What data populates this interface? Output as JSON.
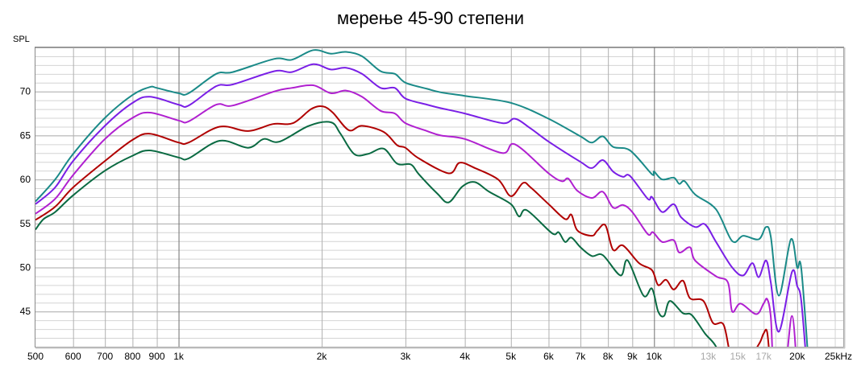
{
  "chart_data": {
    "type": "line",
    "title": "мерење 45-90 степени",
    "ylabel": "SPL",
    "xlabel": "",
    "xscale": "log",
    "xlim": [
      500,
      25000
    ],
    "ylim": [
      41,
      75
    ],
    "grid": true,
    "legend": "none",
    "yticks": [
      {
        "value": 45,
        "label": "45"
      },
      {
        "value": 50,
        "label": "50"
      },
      {
        "value": 55,
        "label": "55"
      },
      {
        "value": 60,
        "label": "60"
      },
      {
        "value": 65,
        "label": "65"
      },
      {
        "value": 70,
        "label": "70"
      }
    ],
    "xticks": [
      {
        "value": 500,
        "label": "500"
      },
      {
        "value": 600,
        "label": "600"
      },
      {
        "value": 700,
        "label": "700"
      },
      {
        "value": 800,
        "label": "800"
      },
      {
        "value": 900,
        "label": "900"
      },
      {
        "value": 1000,
        "label": "1k"
      },
      {
        "value": 2000,
        "label": "2k"
      },
      {
        "value": 3000,
        "label": "3k"
      },
      {
        "value": 4000,
        "label": "4k"
      },
      {
        "value": 5000,
        "label": "5k"
      },
      {
        "value": 6000,
        "label": "6k"
      },
      {
        "value": 7000,
        "label": "7k"
      },
      {
        "value": 8000,
        "label": "8k"
      },
      {
        "value": 9000,
        "label": "9k"
      },
      {
        "value": 10000,
        "label": "10k"
      },
      {
        "value": 13000,
        "label": "13k",
        "minor": true
      },
      {
        "value": 15000,
        "label": "15k",
        "minor": true
      },
      {
        "value": 17000,
        "label": "17k",
        "minor": true
      },
      {
        "value": 20000,
        "label": "20k"
      },
      {
        "value": 25000,
        "label": "25kHz"
      }
    ],
    "series": [
      {
        "color": "#1a8a88",
        "points": [
          [
            500,
            57.5
          ],
          [
            550,
            60.0
          ],
          [
            600,
            62.9
          ],
          [
            700,
            67.0
          ],
          [
            800,
            69.6
          ],
          [
            870,
            70.5
          ],
          [
            900,
            70.4
          ],
          [
            1000,
            69.8
          ],
          [
            1050,
            69.8
          ],
          [
            1200,
            72.0
          ],
          [
            1300,
            72.2
          ],
          [
            1590,
            73.7
          ],
          [
            1730,
            73.6
          ],
          [
            1920,
            74.7
          ],
          [
            2090,
            74.3
          ],
          [
            2250,
            74.5
          ],
          [
            2430,
            74.0
          ],
          [
            2660,
            72.3
          ],
          [
            2850,
            72.0
          ],
          [
            3000,
            71.0
          ],
          [
            3330,
            70.3
          ],
          [
            3560,
            69.9
          ],
          [
            4000,
            69.5
          ],
          [
            5000,
            68.7
          ],
          [
            6000,
            66.9
          ],
          [
            7000,
            64.9
          ],
          [
            7400,
            64.2
          ],
          [
            7800,
            64.9
          ],
          [
            8200,
            63.7
          ],
          [
            8900,
            63.3
          ],
          [
            9900,
            60.6
          ],
          [
            10000,
            60.9
          ],
          [
            10400,
            60.0
          ],
          [
            11000,
            60.2
          ],
          [
            11300,
            59.5
          ],
          [
            11600,
            59.8
          ],
          [
            12200,
            58.3
          ],
          [
            13500,
            56.6
          ],
          [
            14600,
            53.0
          ],
          [
            15400,
            53.6
          ],
          [
            16600,
            53.2
          ],
          [
            17200,
            54.6
          ],
          [
            17600,
            53.5
          ],
          [
            18300,
            46.8
          ],
          [
            19400,
            53.2
          ],
          [
            20000,
            50.0
          ],
          [
            20400,
            49.9
          ],
          [
            21200,
            38
          ]
        ]
      },
      {
        "color": "#7a1fe6",
        "points": [
          [
            500,
            57.2
          ],
          [
            550,
            59.1
          ],
          [
            600,
            62.1
          ],
          [
            700,
            66.1
          ],
          [
            800,
            68.7
          ],
          [
            870,
            69.4
          ],
          [
            1000,
            68.5
          ],
          [
            1050,
            68.4
          ],
          [
            1200,
            70.6
          ],
          [
            1300,
            70.8
          ],
          [
            1590,
            72.3
          ],
          [
            1730,
            72.2
          ],
          [
            1920,
            73.1
          ],
          [
            2090,
            72.5
          ],
          [
            2250,
            72.7
          ],
          [
            2430,
            72.0
          ],
          [
            2660,
            70.4
          ],
          [
            2850,
            70.4
          ],
          [
            3000,
            69.2
          ],
          [
            3330,
            68.5
          ],
          [
            3560,
            68.1
          ],
          [
            4000,
            67.5
          ],
          [
            4800,
            66.4
          ],
          [
            5100,
            66.9
          ],
          [
            5500,
            65.8
          ],
          [
            6000,
            64.3
          ],
          [
            7000,
            62.0
          ],
          [
            7400,
            61.3
          ],
          [
            7800,
            62.2
          ],
          [
            8200,
            60.9
          ],
          [
            8600,
            60.3
          ],
          [
            8900,
            60.4
          ],
          [
            9700,
            57.8
          ],
          [
            9900,
            58.0
          ],
          [
            10400,
            56.3
          ],
          [
            11000,
            57.2
          ],
          [
            11400,
            55.7
          ],
          [
            12200,
            54.6
          ],
          [
            12800,
            54.9
          ],
          [
            13500,
            52.9
          ],
          [
            14600,
            50.0
          ],
          [
            15400,
            49.1
          ],
          [
            16100,
            50.5
          ],
          [
            16600,
            48.9
          ],
          [
            17200,
            50.8
          ],
          [
            17600,
            48.3
          ],
          [
            18300,
            42.7
          ],
          [
            19500,
            49.5
          ],
          [
            20000,
            47.9
          ],
          [
            20400,
            46.2
          ],
          [
            21000,
            38
          ]
        ]
      },
      {
        "color": "#b020d0",
        "points": [
          [
            500,
            56.1
          ],
          [
            550,
            57.8
          ],
          [
            600,
            60.5
          ],
          [
            700,
            64.6
          ],
          [
            800,
            67.0
          ],
          [
            870,
            67.6
          ],
          [
            1000,
            66.7
          ],
          [
            1050,
            66.6
          ],
          [
            1200,
            68.5
          ],
          [
            1300,
            68.4
          ],
          [
            1590,
            70.0
          ],
          [
            1730,
            70.4
          ],
          [
            1920,
            70.7
          ],
          [
            2090,
            69.8
          ],
          [
            2250,
            70.1
          ],
          [
            2430,
            69.4
          ],
          [
            2660,
            67.8
          ],
          [
            2850,
            67.5
          ],
          [
            3000,
            66.4
          ],
          [
            3330,
            65.5
          ],
          [
            3560,
            65.0
          ],
          [
            4000,
            64.6
          ],
          [
            4800,
            63.0
          ],
          [
            5100,
            64.0
          ],
          [
            6000,
            60.7
          ],
          [
            6400,
            59.8
          ],
          [
            6600,
            60.1
          ],
          [
            6900,
            58.7
          ],
          [
            7400,
            57.9
          ],
          [
            7800,
            58.6
          ],
          [
            8200,
            56.8
          ],
          [
            8600,
            57.1
          ],
          [
            9000,
            56.3
          ],
          [
            9700,
            53.8
          ],
          [
            9950,
            54.0
          ],
          [
            10400,
            52.9
          ],
          [
            11000,
            53.1
          ],
          [
            11300,
            51.7
          ],
          [
            11900,
            52.3
          ],
          [
            12200,
            50.8
          ],
          [
            13500,
            49.0
          ],
          [
            14300,
            48.3
          ],
          [
            14600,
            45.0
          ],
          [
            15200,
            45.9
          ],
          [
            16400,
            44.7
          ],
          [
            17000,
            45.9
          ],
          [
            17300,
            46.4
          ],
          [
            17600,
            44.4
          ],
          [
            17900,
            38
          ],
          [
            18800,
            38
          ],
          [
            19500,
            44.5
          ],
          [
            20000,
            38
          ]
        ]
      },
      {
        "color": "#b00000",
        "points": [
          [
            500,
            55.4
          ],
          [
            550,
            56.9
          ],
          [
            600,
            59.1
          ],
          [
            700,
            62.1
          ],
          [
            800,
            64.5
          ],
          [
            870,
            65.2
          ],
          [
            1000,
            64.2
          ],
          [
            1050,
            64.2
          ],
          [
            1220,
            66.0
          ],
          [
            1400,
            65.5
          ],
          [
            1580,
            66.3
          ],
          [
            1740,
            66.4
          ],
          [
            1900,
            68.0
          ],
          [
            2010,
            68.3
          ],
          [
            2110,
            67.6
          ],
          [
            2280,
            65.6
          ],
          [
            2430,
            66.1
          ],
          [
            2700,
            65.4
          ],
          [
            2880,
            63.9
          ],
          [
            3000,
            63.6
          ],
          [
            3200,
            62.4
          ],
          [
            3700,
            60.7
          ],
          [
            3900,
            61.9
          ],
          [
            4200,
            61.3
          ],
          [
            4700,
            60.0
          ],
          [
            5000,
            58.1
          ],
          [
            5300,
            59.6
          ],
          [
            5500,
            59.1
          ],
          [
            6000,
            57.2
          ],
          [
            6500,
            55.5
          ],
          [
            6700,
            56.0
          ],
          [
            6900,
            54.2
          ],
          [
            7400,
            53.6
          ],
          [
            7600,
            54.2
          ],
          [
            7900,
            54.8
          ],
          [
            8200,
            52.0
          ],
          [
            8600,
            52.5
          ],
          [
            9300,
            50.5
          ],
          [
            9900,
            49.7
          ],
          [
            10200,
            48.0
          ],
          [
            10600,
            48.6
          ],
          [
            11000,
            47.5
          ],
          [
            11500,
            48.5
          ],
          [
            11900,
            46.5
          ],
          [
            12700,
            46.2
          ],
          [
            13300,
            43.7
          ],
          [
            14000,
            43.5
          ],
          [
            14500,
            40
          ],
          [
            15200,
            39
          ],
          [
            16000,
            40
          ],
          [
            16700,
            41.5
          ],
          [
            17000,
            42.5
          ],
          [
            17300,
            42.6
          ],
          [
            17600,
            38
          ]
        ]
      },
      {
        "color": "#0a6a42",
        "points": [
          [
            500,
            54.3
          ],
          [
            520,
            55.5
          ],
          [
            550,
            56.3
          ],
          [
            600,
            58.2
          ],
          [
            700,
            61.0
          ],
          [
            800,
            62.7
          ],
          [
            870,
            63.3
          ],
          [
            1000,
            62.5
          ],
          [
            1050,
            62.4
          ],
          [
            1220,
            64.4
          ],
          [
            1400,
            63.6
          ],
          [
            1510,
            64.6
          ],
          [
            1630,
            64.3
          ],
          [
            1880,
            66.1
          ],
          [
            2090,
            66.5
          ],
          [
            2190,
            65.2
          ],
          [
            2340,
            62.9
          ],
          [
            2500,
            62.9
          ],
          [
            2700,
            63.5
          ],
          [
            2880,
            61.8
          ],
          [
            3080,
            61.7
          ],
          [
            3200,
            60.6
          ],
          [
            3500,
            58.4
          ],
          [
            3700,
            57.4
          ],
          [
            3950,
            59.2
          ],
          [
            4200,
            59.7
          ],
          [
            4500,
            58.6
          ],
          [
            5000,
            57.2
          ],
          [
            5200,
            55.8
          ],
          [
            5400,
            56.5
          ],
          [
            6100,
            53.9
          ],
          [
            6300,
            54.0
          ],
          [
            6500,
            52.9
          ],
          [
            6700,
            53.4
          ],
          [
            7000,
            52.3
          ],
          [
            7400,
            51.3
          ],
          [
            7800,
            51.4
          ],
          [
            8500,
            49.1
          ],
          [
            8800,
            50.8
          ],
          [
            9500,
            46.8
          ],
          [
            9900,
            47.6
          ],
          [
            10200,
            45.0
          ],
          [
            10500,
            44.5
          ],
          [
            10800,
            46.2
          ],
          [
            11500,
            44.8
          ],
          [
            12000,
            44.6
          ],
          [
            12800,
            42.5
          ],
          [
            13500,
            41.0
          ],
          [
            14200,
            38
          ]
        ]
      }
    ]
  }
}
